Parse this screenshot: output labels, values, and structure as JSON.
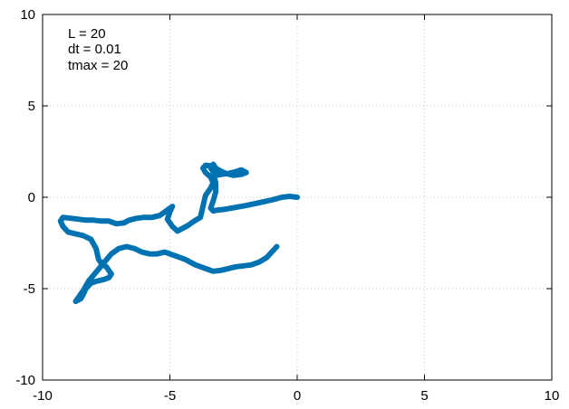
{
  "chart_data": {
    "type": "line",
    "xlim": [
      -10,
      10
    ],
    "ylim": [
      -10,
      10
    ],
    "xticks": [
      -10,
      -5,
      0,
      5,
      10
    ],
    "yticks": [
      -10,
      -5,
      0,
      5,
      10
    ],
    "grid": true,
    "annotations": [
      "L = 20",
      "dt = 0.01",
      "tmax = 20"
    ],
    "series": [
      {
        "color": "#0072b2",
        "x": [
          0.0,
          -0.3,
          -0.6,
          -1.0,
          -1.5,
          -2.0,
          -2.4,
          -2.8,
          -3.1,
          -3.3,
          -3.4,
          -3.3,
          -3.2,
          -3.2,
          -3.3,
          -3.2,
          -3.3,
          -3.4,
          -3.2,
          -3.0,
          -2.7,
          -2.4,
          -2.2,
          -2.0,
          -2.2,
          -2.5,
          -2.8,
          -3.1,
          -3.3,
          -3.6,
          -3.7,
          -3.6,
          -3.4,
          -3.3,
          -3.4,
          -3.6,
          -3.8,
          -4.1,
          -4.3,
          -4.5,
          -4.7,
          -4.9,
          -5.1,
          -5.0,
          -4.9,
          -5.0,
          -5.2,
          -5.4,
          -5.7,
          -6.0,
          -6.3,
          -6.6,
          -6.8,
          -7.1,
          -7.4,
          -7.7,
          -8.0,
          -8.3,
          -8.6,
          -8.9,
          -9.2,
          -9.3,
          -9.2,
          -9.0,
          -8.7,
          -8.4,
          -8.1,
          -7.9,
          -7.8,
          -7.7,
          -7.6,
          -7.5,
          -7.4,
          -7.3,
          -7.4,
          -7.6,
          -7.9,
          -8.1,
          -8.3,
          -8.4,
          -8.5,
          -8.7,
          -8.6,
          -8.4,
          -8.2,
          -7.9,
          -7.6,
          -7.3,
          -7.0,
          -6.7,
          -6.4,
          -6.1,
          -5.8,
          -5.5,
          -5.2,
          -4.8,
          -4.4,
          -4.0,
          -3.6,
          -3.3,
          -3.0,
          -2.7,
          -2.4,
          -2.1,
          -1.8,
          -1.5,
          -1.2,
          -1.0,
          -0.8
        ],
        "y": [
          0.0,
          0.05,
          0.0,
          -0.15,
          -0.3,
          -0.45,
          -0.55,
          -0.65,
          -0.7,
          -0.75,
          -0.6,
          -0.2,
          0.3,
          0.8,
          1.3,
          1.6,
          1.8,
          1.6,
          1.2,
          1.25,
          1.3,
          1.4,
          1.5,
          1.35,
          1.25,
          1.2,
          1.3,
          1.5,
          1.7,
          1.75,
          1.6,
          1.35,
          1.1,
          0.8,
          0.5,
          0.1,
          -1.1,
          -1.35,
          -1.55,
          -1.7,
          -1.85,
          -1.6,
          -1.2,
          -0.8,
          -0.5,
          -0.6,
          -0.8,
          -1.0,
          -1.1,
          -1.1,
          -1.15,
          -1.25,
          -1.4,
          -1.45,
          -1.3,
          -1.3,
          -1.25,
          -1.25,
          -1.2,
          -1.15,
          -1.1,
          -1.3,
          -1.6,
          -1.9,
          -2.0,
          -2.1,
          -2.3,
          -2.8,
          -3.4,
          -3.6,
          -3.7,
          -3.8,
          -4.0,
          -4.2,
          -4.4,
          -4.5,
          -4.6,
          -4.7,
          -5.0,
          -5.3,
          -5.55,
          -5.7,
          -5.5,
          -5.1,
          -4.6,
          -4.1,
          -3.6,
          -3.1,
          -2.8,
          -2.7,
          -2.8,
          -3.0,
          -3.1,
          -3.1,
          -3.0,
          -3.2,
          -3.4,
          -3.7,
          -3.9,
          -4.05,
          -4.0,
          -3.9,
          -3.8,
          -3.75,
          -3.7,
          -3.55,
          -3.3,
          -3.0,
          -2.7
        ]
      }
    ]
  }
}
